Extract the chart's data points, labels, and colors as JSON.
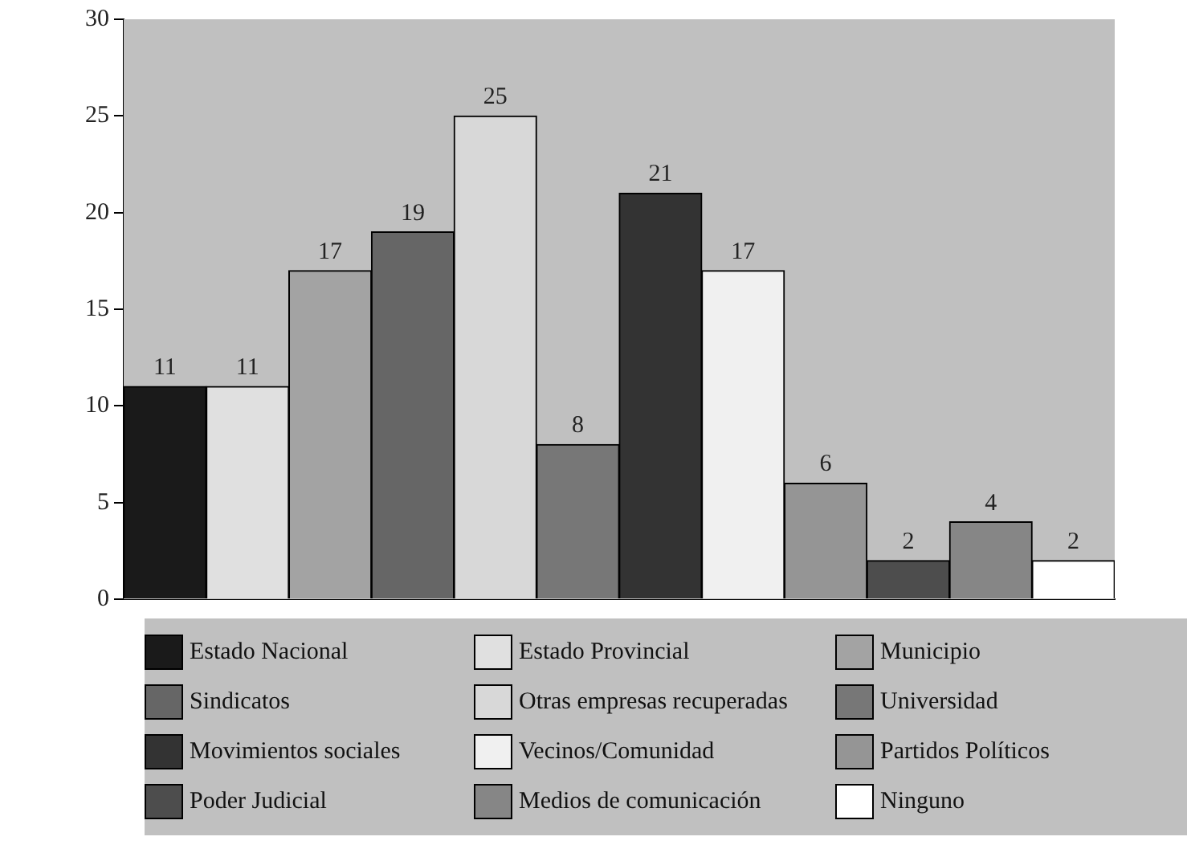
{
  "chart_data": {
    "type": "bar",
    "categories": [
      null,
      null,
      null,
      null,
      null,
      null,
      null,
      null,
      null,
      null,
      null,
      null
    ],
    "series": [
      {
        "name": "Estado Nacional",
        "color": "#1a1a1a",
        "values": [
          11,
          null,
          null,
          null,
          null,
          null,
          null,
          null,
          null,
          null,
          null,
          null
        ]
      },
      {
        "name": "Estado Provincial",
        "color": "#e0e0e0",
        "values": [
          null,
          11,
          null,
          null,
          null,
          null,
          null,
          null,
          null,
          null,
          null,
          null
        ]
      },
      {
        "name": "Municipio",
        "color": "#a3a3a3",
        "values": [
          null,
          null,
          17,
          null,
          null,
          null,
          null,
          null,
          null,
          null,
          null,
          null
        ]
      },
      {
        "name": "Sindicatos",
        "color": "#666666",
        "values": [
          null,
          null,
          null,
          19,
          null,
          null,
          null,
          null,
          null,
          null,
          null,
          null
        ]
      },
      {
        "name": "Otras empresas recuperadas",
        "color": "#d8d8d8",
        "values": [
          null,
          null,
          null,
          null,
          25,
          null,
          null,
          null,
          null,
          null,
          null,
          null
        ]
      },
      {
        "name": "Universidad",
        "color": "#777777",
        "values": [
          null,
          null,
          null,
          null,
          null,
          8,
          null,
          null,
          null,
          null,
          null,
          null
        ]
      },
      {
        "name": "Movimientos sociales",
        "color": "#333333",
        "values": [
          null,
          null,
          null,
          null,
          null,
          null,
          21,
          null,
          null,
          null,
          null,
          null
        ]
      },
      {
        "name": "Vecinos/Comunidad",
        "color": "#f0f0f0",
        "values": [
          null,
          null,
          null,
          null,
          null,
          null,
          null,
          17,
          null,
          null,
          null,
          null
        ]
      },
      {
        "name": "Partidos Políticos",
        "color": "#959595",
        "values": [
          null,
          null,
          null,
          null,
          null,
          null,
          null,
          null,
          6,
          null,
          null,
          null
        ]
      },
      {
        "name": "Poder Judicial",
        "color": "#4d4d4d",
        "values": [
          null,
          null,
          null,
          null,
          null,
          null,
          null,
          null,
          null,
          2,
          null,
          null
        ]
      },
      {
        "name": "Medios de comunicación",
        "color": "#868686",
        "values": [
          null,
          null,
          null,
          null,
          null,
          null,
          null,
          null,
          null,
          null,
          4,
          null
        ]
      },
      {
        "name": "Ninguno",
        "color": "#ffffff",
        "values": [
          null,
          null,
          null,
          null,
          null,
          null,
          null,
          null,
          null,
          null,
          null,
          2
        ]
      }
    ],
    "ylim": [
      0,
      30
    ],
    "yticks": [
      0,
      5,
      10,
      15,
      20,
      25,
      30
    ],
    "grid": false,
    "legend": "bottom",
    "data_labels": true,
    "tick_labels": "y"
  }
}
